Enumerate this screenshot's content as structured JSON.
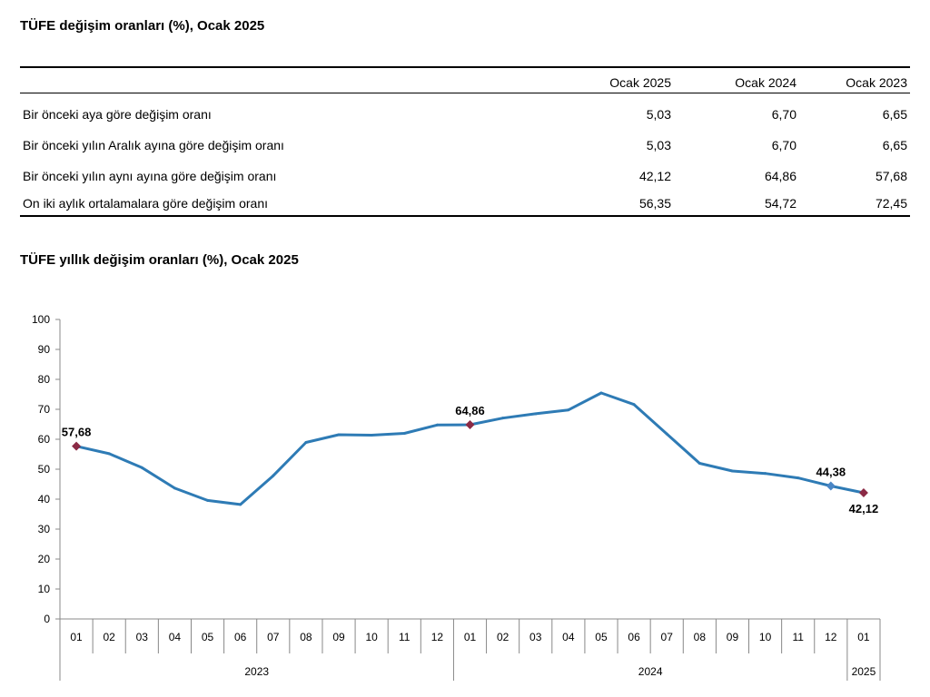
{
  "table_title": "TÜFE değişim oranları (%), Ocak 2025",
  "table": {
    "columns": [
      "Ocak 2025",
      "Ocak 2024",
      "Ocak 2023"
    ],
    "rows": [
      {
        "label": "Bir önceki aya göre değişim oranı",
        "values": [
          "5,03",
          "6,70",
          "6,65"
        ]
      },
      {
        "label": "Bir önceki yılın Aralık ayına göre değişim oranı",
        "values": [
          "5,03",
          "6,70",
          "6,65"
        ]
      },
      {
        "label": "Bir önceki yılın aynı ayına göre değişim oranı",
        "values": [
          "42,12",
          "64,86",
          "57,68"
        ]
      },
      {
        "label": "On iki aylık ortalamalara göre değişim oranı",
        "values": [
          "56,35",
          "54,72",
          "72,45"
        ]
      }
    ]
  },
  "chart_title": "TÜFE yıllık değişim oranları (%), Ocak 2025",
  "chart_data": {
    "type": "line",
    "title": "TÜFE yıllık değişim oranları (%), Ocak 2025",
    "xlabel": "",
    "ylabel": "",
    "ylim": [
      0,
      100
    ],
    "yticks": [
      0,
      10,
      20,
      30,
      40,
      50,
      60,
      70,
      80,
      90,
      100
    ],
    "grid": false,
    "legend": "none",
    "categories": [
      "01",
      "02",
      "03",
      "04",
      "05",
      "06",
      "07",
      "08",
      "09",
      "10",
      "11",
      "12",
      "01",
      "02",
      "03",
      "04",
      "05",
      "06",
      "07",
      "08",
      "09",
      "10",
      "11",
      "12",
      "01"
    ],
    "year_groups": [
      {
        "label": "2023",
        "count": 12
      },
      {
        "label": "2024",
        "count": 12
      },
      {
        "label": "2025",
        "count": 1
      }
    ],
    "series": [
      {
        "color": "#2e7bb5",
        "values": [
          57.68,
          55.18,
          50.51,
          43.68,
          39.59,
          38.21,
          47.83,
          58.94,
          61.53,
          61.36,
          61.98,
          64.77,
          64.86,
          67.07,
          68.5,
          69.8,
          75.45,
          71.6,
          61.78,
          51.97,
          49.38,
          48.58,
          47.09,
          44.38,
          42.12
        ]
      }
    ],
    "highlights": [
      {
        "index": 0,
        "label": "57,68",
        "marker_color": "#8b2a45",
        "label_pos": "above"
      },
      {
        "index": 12,
        "label": "64,86",
        "marker_color": "#8b2a45",
        "label_pos": "above"
      },
      {
        "index": 23,
        "label": "44,38",
        "marker_color": "#4a86c5",
        "label_pos": "above"
      },
      {
        "index": 24,
        "label": "42,12",
        "marker_color": "#8b2a45",
        "label_pos": "below"
      }
    ]
  }
}
